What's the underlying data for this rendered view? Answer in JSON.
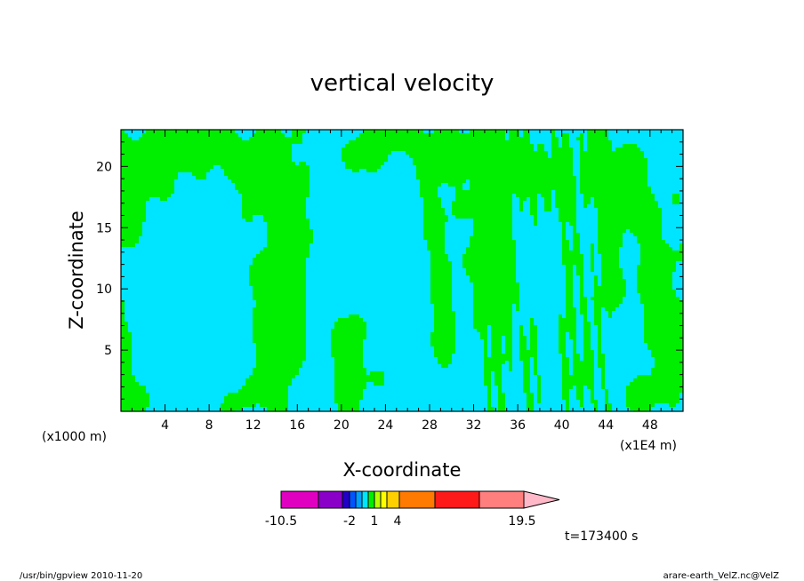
{
  "chart_data": {
    "type": "heatmap",
    "title": "vertical velocity",
    "xlabel": "X-coordinate",
    "ylabel": "Z-coordinate",
    "x_unit_left": "(x1000 m)",
    "x_unit_right": "(x1E4 m)",
    "xlim": [
      0,
      51
    ],
    "ylim": [
      0,
      23
    ],
    "x_ticks": [
      4,
      8,
      12,
      16,
      20,
      24,
      28,
      32,
      36,
      40,
      44,
      48
    ],
    "x_tick_labels": [
      "4",
      "8",
      "12",
      "16",
      "20",
      "24",
      "28",
      "32",
      "36",
      "40",
      "44",
      "48"
    ],
    "y_ticks": [
      5,
      10,
      15,
      20
    ],
    "y_tick_labels": [
      "5",
      "10",
      "15",
      "20"
    ],
    "fill_regions": [
      {
        "class": "negative",
        "color": "#00e5ff",
        "label": "cyan (weak downdraft)"
      },
      {
        "class": "positive",
        "color": "#00ee00",
        "label": "green (weak updraft)"
      }
    ],
    "colorbar": {
      "colors": [
        "#e000c0",
        "#8a00c8",
        "#2200c8",
        "#0055ff",
        "#00a0ff",
        "#00e5ff",
        "#00ee00",
        "#b8ff00",
        "#ffff00",
        "#ffd000",
        "#ff7a00",
        "#ff1a1a",
        "#ff7e7e",
        "#ffb8c8"
      ],
      "labels": [
        "-10.5",
        "-2",
        "1",
        "4",
        "19.5"
      ]
    },
    "time_label": "t=173400 s"
  },
  "footer": {
    "left": "/usr/bin/gpview   2010-11-20",
    "right": "arare-earth_VelZ.nc@VelZ"
  }
}
